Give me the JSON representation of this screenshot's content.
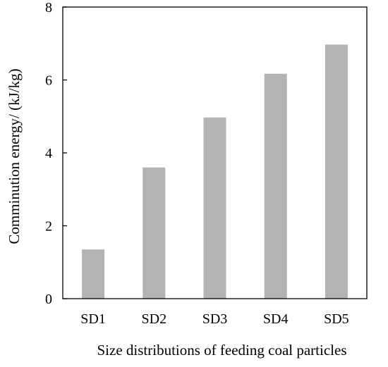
{
  "chart_data": {
    "type": "bar",
    "categories": [
      "SD1",
      "SD2",
      "SD3",
      "SD4",
      "SD5"
    ],
    "values": [
      1.35,
      3.6,
      4.97,
      6.17,
      6.97
    ],
    "xlabel": "Size distributions of feeding coal particles",
    "ylabel": "Comminution energy/ (kJ/kg)",
    "ylim": [
      0,
      8
    ],
    "yticks": [
      0,
      2,
      4,
      6,
      8
    ],
    "grid": false,
    "bar_color": "#b3b3b3"
  }
}
